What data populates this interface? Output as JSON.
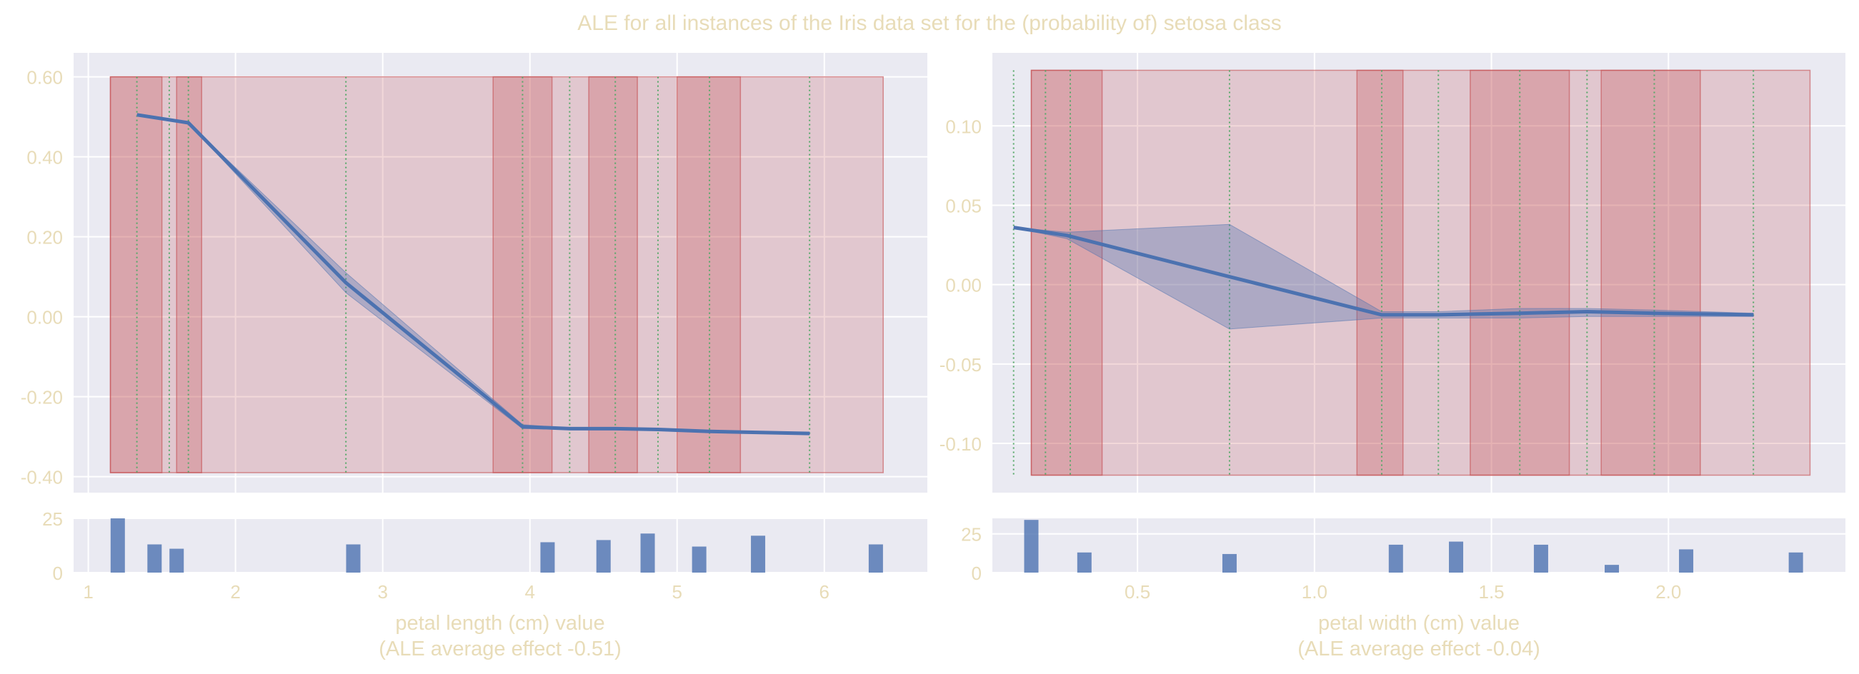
{
  "title": "ALE for all instances of the Iris data set for the (probability of) setosa class",
  "colors": {
    "text": "#e8dcb8",
    "axes_bg": "#eaeaf2",
    "grid": "#ffffff",
    "line": "#4c72b0",
    "band": "#4c72b0",
    "region": "#c44e52",
    "vline": "#55a868",
    "hist": "#4c72b0"
  },
  "chart_data": [
    {
      "type": "line",
      "name": "petal-length-ale",
      "xlabel": "petal length (cm) value",
      "xlabel2": "(ALE average effect -0.51)",
      "xlim": [
        0.9,
        6.7
      ],
      "ylim": [
        -0.44,
        0.66
      ],
      "yticks": [
        0.6,
        0.4,
        0.2,
        0.0,
        -0.2,
        -0.4
      ],
      "ytick_labels": [
        "0.60",
        "0.40",
        "0.20",
        "0.00",
        "-0.20",
        "-0.40"
      ],
      "xticks": [
        1,
        2,
        3,
        4,
        5,
        6
      ],
      "xtick_labels": [
        "1",
        "2",
        "3",
        "4",
        "5",
        "6"
      ],
      "region_span": [
        -0.39,
        0.6
      ],
      "outer_region": [
        1.15,
        6.4
      ],
      "dark_regions": [
        [
          1.15,
          1.5
        ],
        [
          1.6,
          1.77
        ],
        [
          3.75,
          4.15
        ],
        [
          4.4,
          4.73
        ],
        [
          5.0,
          5.43
        ]
      ],
      "vlines": [
        1.33,
        1.55,
        1.68,
        2.75,
        3.95,
        4.27,
        4.58,
        4.87,
        5.22,
        5.9
      ],
      "x": [
        1.33,
        1.68,
        2.75,
        3.95,
        4.27,
        4.58,
        4.87,
        5.22,
        5.9
      ],
      "y": [
        0.505,
        0.485,
        0.085,
        -0.275,
        -0.28,
        -0.28,
        -0.282,
        -0.287,
        -0.292
      ],
      "ci_lower": [
        0.505,
        0.485,
        0.06,
        -0.28,
        -0.282,
        -0.282,
        -0.284,
        -0.289,
        -0.294
      ],
      "ci_upper": [
        0.505,
        0.485,
        0.11,
        -0.27,
        -0.278,
        -0.278,
        -0.28,
        -0.285,
        -0.29
      ],
      "hist": {
        "ylim": [
          0,
          25
        ],
        "yticks": [
          0,
          25
        ],
        "ytick_labels": [
          "0",
          "25"
        ],
        "bars": [
          {
            "x": 1.2,
            "count": 25
          },
          {
            "x": 1.45,
            "count": 13
          },
          {
            "x": 1.6,
            "count": 11
          },
          {
            "x": 2.8,
            "count": 13
          },
          {
            "x": 4.12,
            "count": 14
          },
          {
            "x": 4.5,
            "count": 15
          },
          {
            "x": 4.8,
            "count": 18
          },
          {
            "x": 5.15,
            "count": 12
          },
          {
            "x": 5.55,
            "count": 17
          },
          {
            "x": 6.35,
            "count": 13
          }
        ]
      }
    },
    {
      "type": "line",
      "name": "petal-width-ale",
      "xlabel": "petal width (cm) value",
      "xlabel2": "(ALE average effect -0.04)",
      "xlim": [
        0.09,
        2.5
      ],
      "ylim": [
        -0.131,
        0.146
      ],
      "yticks": [
        0.1,
        0.05,
        0.0,
        -0.05,
        -0.1
      ],
      "ytick_labels": [
        "0.10",
        "0.05",
        "0.00",
        "-0.05",
        "-0.10"
      ],
      "xticks": [
        0.5,
        1.0,
        1.5,
        2.0
      ],
      "xtick_labels": [
        "0.5",
        "1.0",
        "1.5",
        "2.0"
      ],
      "region_span": [
        -0.12,
        0.135
      ],
      "outer_region": [
        0.2,
        2.4
      ],
      "dark_regions": [
        [
          0.2,
          0.4
        ],
        [
          1.12,
          1.25
        ],
        [
          1.44,
          1.72
        ],
        [
          1.81,
          2.09
        ]
      ],
      "vlines": [
        0.15,
        0.24,
        0.31,
        0.76,
        1.19,
        1.35,
        1.58,
        1.77,
        1.96,
        2.24
      ],
      "x": [
        0.15,
        0.3,
        0.76,
        1.19,
        1.35,
        1.58,
        1.77,
        1.96,
        2.24
      ],
      "y": [
        0.036,
        0.031,
        0.005,
        -0.019,
        -0.019,
        -0.018,
        -0.017,
        -0.018,
        -0.019
      ],
      "ci_lower": [
        0.036,
        0.029,
        -0.028,
        -0.021,
        -0.021,
        -0.021,
        -0.02,
        -0.02,
        -0.02
      ],
      "ci_upper": [
        0.036,
        0.033,
        0.038,
        -0.017,
        -0.017,
        -0.015,
        -0.015,
        -0.016,
        -0.018
      ],
      "hist": {
        "ylim": [
          0,
          35
        ],
        "yticks": [
          0,
          25
        ],
        "ytick_labels": [
          "0",
          "25"
        ],
        "bars": [
          {
            "x": 0.2,
            "count": 34
          },
          {
            "x": 0.35,
            "count": 13
          },
          {
            "x": 0.76,
            "count": 12
          },
          {
            "x": 1.23,
            "count": 18
          },
          {
            "x": 1.4,
            "count": 20
          },
          {
            "x": 1.64,
            "count": 18
          },
          {
            "x": 1.84,
            "count": 5
          },
          {
            "x": 2.05,
            "count": 15
          },
          {
            "x": 2.36,
            "count": 13
          }
        ]
      }
    }
  ]
}
